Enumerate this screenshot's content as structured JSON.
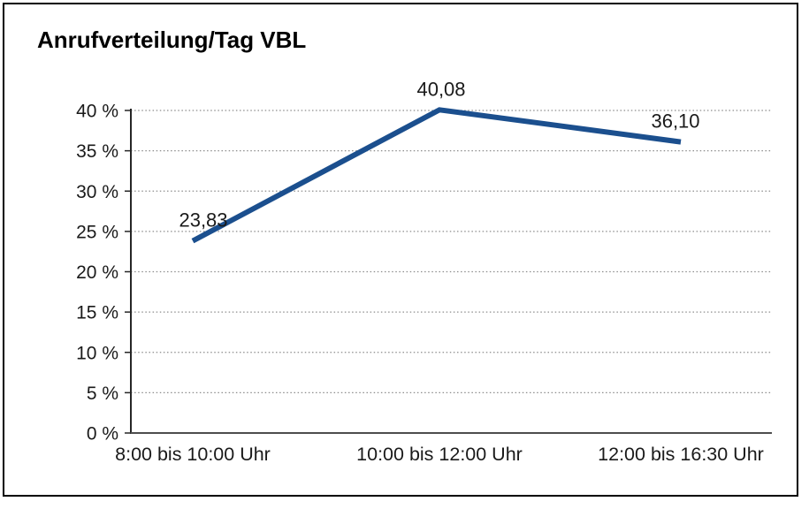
{
  "title": "Anrufverteilung/Tag VBL",
  "chart_data": {
    "type": "line",
    "title": "Anrufverteilung/Tag VBL",
    "categories": [
      "8:00 bis 10:00 Uhr",
      "10:00 bis 12:00 Uhr",
      "12:00 bis 16:30 Uhr"
    ],
    "values": [
      23.83,
      40.08,
      36.1
    ],
    "data_labels": [
      "23,83",
      "40,08",
      "36,10"
    ],
    "xlabel": "",
    "ylabel": "",
    "ylim": [
      0,
      40
    ],
    "ytick_step": 5,
    "ytick_labels": [
      "0 %",
      "5 %",
      "10 %",
      "15 %",
      "20 %",
      "25 %",
      "30 %",
      "35 %",
      "40 %"
    ],
    "grid": "dotted-horizontal",
    "legend": "none"
  },
  "colors": {
    "line": "#1b4f8e",
    "grid": "#8c8c8c",
    "y_axis": "#262626",
    "x_axis": "#4d4d4d",
    "text": "#1a1a1a",
    "border": "#000000",
    "background": "#ffffff"
  }
}
